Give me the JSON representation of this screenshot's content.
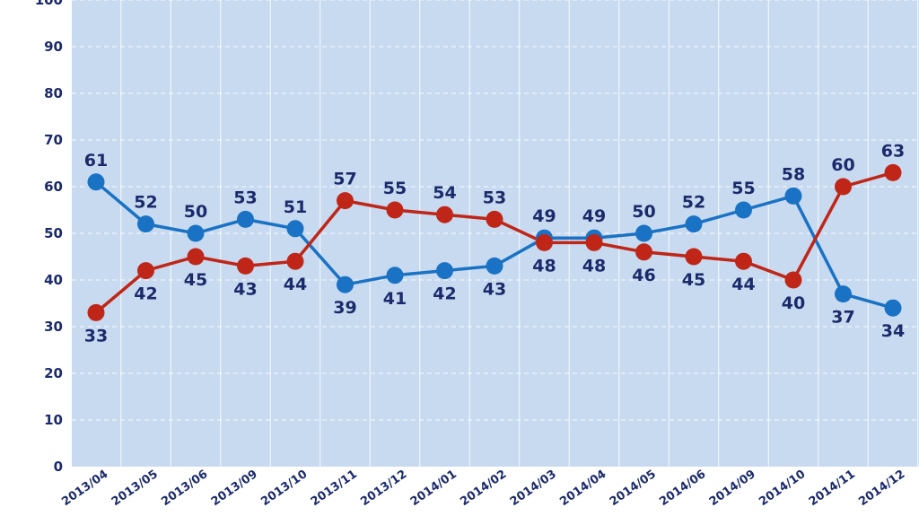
{
  "chart_data": {
    "type": "line",
    "categories": [
      "2013/04",
      "2013/05",
      "2013/06",
      "2013/09",
      "2013/10",
      "2013/11",
      "2013/12",
      "2014/01",
      "2014/02",
      "2014/03",
      "2014/04",
      "2014/05",
      "2014/06",
      "2014/09",
      "2014/10",
      "2014/11",
      "2014/12"
    ],
    "series": [
      {
        "color": "#1a72c4",
        "values": [
          61,
          52,
          50,
          53,
          51,
          39,
          41,
          42,
          43,
          49,
          49,
          50,
          52,
          55,
          58,
          37,
          34
        ]
      },
      {
        "color": "#bf2617",
        "values": [
          33,
          42,
          45,
          43,
          44,
          57,
          55,
          54,
          53,
          48,
          48,
          46,
          45,
          44,
          40,
          60,
          63
        ]
      }
    ],
    "ylim": [
      0,
      100
    ],
    "yticks": [
      0,
      10,
      20,
      30,
      40,
      50,
      60,
      70,
      80,
      90,
      100
    ],
    "grid": true,
    "xlabel": "",
    "ylabel": ""
  },
  "colors": {
    "plot_background": "#c8daf0",
    "grid": "#ffffff",
    "text": "#1b2a6b"
  }
}
